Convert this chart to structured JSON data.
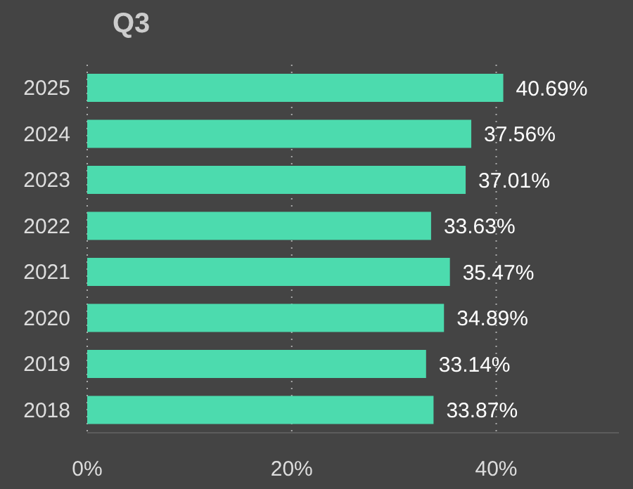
{
  "chart_data": {
    "type": "bar",
    "orientation": "horizontal",
    "title": "Q3",
    "categories": [
      "2025",
      "2024",
      "2023",
      "2022",
      "2021",
      "2020",
      "2019",
      "2018"
    ],
    "values": [
      40.69,
      37.56,
      37.01,
      33.63,
      35.47,
      34.89,
      33.14,
      33.87
    ],
    "value_labels": [
      "40.69%",
      "37.56%",
      "37.01%",
      "33.63%",
      "35.47%",
      "34.89%",
      "33.14%",
      "33.87%"
    ],
    "color": "#4cdbae",
    "xlim": [
      0,
      52
    ],
    "xticks": [
      {
        "value": 0,
        "label": "0%"
      },
      {
        "value": 20,
        "label": "20%"
      },
      {
        "value": 40,
        "label": "40%"
      }
    ],
    "grid": "x",
    "legend": false
  }
}
